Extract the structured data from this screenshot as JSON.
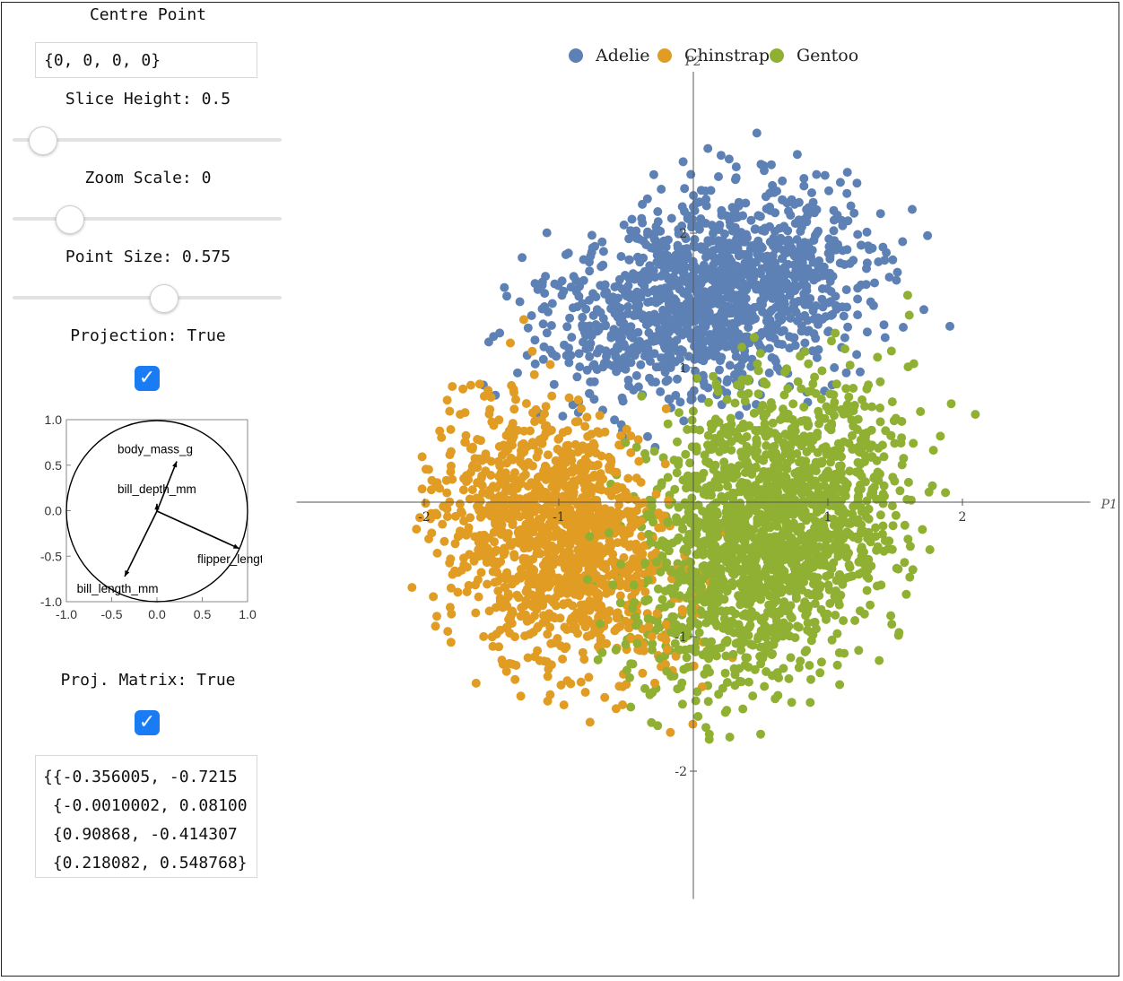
{
  "controls": {
    "centre_point": {
      "label": "Centre Point",
      "value": "{0, 0, 0, 0}"
    },
    "slice_height": {
      "label": "Slice Height: 0.5",
      "value": 0.5,
      "position": 0.11
    },
    "zoom_scale": {
      "label": "Zoom Scale: 0",
      "value": 0,
      "position": 0.21
    },
    "point_size": {
      "label": "Point Size: 0.575",
      "value": 0.575,
      "position": 0.56
    },
    "projection": {
      "label": "Projection: True",
      "checked": true
    },
    "proj_matrix": {
      "label": "Proj. Matrix: True",
      "checked": true,
      "rows": [
        "{{-0.356005, -0.7215",
        " {-0.0010002, 0.08100",
        " {0.90868, -0.414307",
        " {0.218082, 0.548768}"
      ]
    }
  },
  "axes_panel": {
    "x_ticks": [
      "-1.0",
      "-0.5",
      "0.0",
      "0.5",
      "1.0"
    ],
    "y_ticks": [
      "1.0",
      "0.5",
      "0.0",
      "-0.5",
      "-1.0"
    ],
    "vectors": [
      {
        "name": "body_mass_g",
        "x": 0.218,
        "y": 0.549
      },
      {
        "name": "bill_depth_mm",
        "x": -0.001,
        "y": 0.081
      },
      {
        "name": "flipper_length_mm",
        "x": 0.909,
        "y": -0.414
      },
      {
        "name": "bill_length_mm",
        "x": -0.356,
        "y": -0.722
      }
    ],
    "vector_labels": [
      "body_mass_g",
      "bill_depth_mm",
      "flipper_lengt",
      "bill_length_mm"
    ]
  },
  "chart_data": {
    "type": "scatter",
    "xlabel": "P1",
    "ylabel": "P2",
    "xlim": [
      -2.95,
      2.95
    ],
    "ylim": [
      -2.95,
      3.2
    ],
    "x_ticks": [
      -2,
      -1,
      1,
      2
    ],
    "y_ticks": [
      2,
      1,
      -1,
      -2
    ],
    "legend": {
      "position": "top",
      "entries": [
        "Adelie",
        "Chinstrap",
        "Gentoo"
      ]
    },
    "series": [
      {
        "name": "Adelie",
        "color": "#5e81b5",
        "center": [
          0.15,
          1.55
        ],
        "spread": [
          0.85,
          0.75
        ]
      },
      {
        "name": "Chinstrap",
        "color": "#e19c24",
        "center": [
          -1.0,
          -0.6
        ],
        "spread": [
          0.75,
          0.85
        ]
      },
      {
        "name": "Gentoo",
        "color": "#8fb032",
        "center": [
          0.55,
          -0.2
        ],
        "spread": [
          0.85,
          1.0
        ]
      }
    ]
  }
}
